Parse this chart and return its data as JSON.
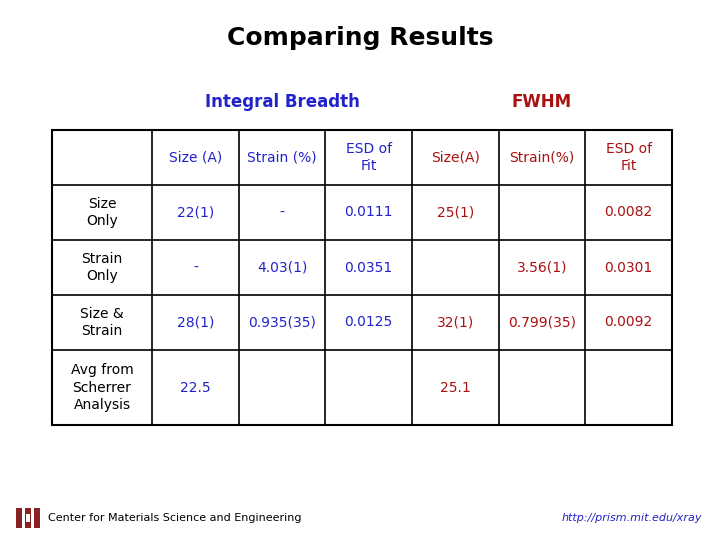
{
  "title": "Comparing Results",
  "title_fontsize": 18,
  "title_fontweight": "bold",
  "title_color": "#000000",
  "bg_color": "#ffffff",
  "integral_breadth_label": "Integral Breadth",
  "fwhm_label": "FWHM",
  "header_color_blue": "#2222CC",
  "header_color_red": "#AA1111",
  "col_headers": [
    "Size (A)",
    "Strain (%)",
    "ESD of\nFit",
    "Size(A)",
    "Strain(%)",
    "ESD of\nFit"
  ],
  "row_labels": [
    "Size\nOnly",
    "Strain\nOnly",
    "Size &\nStrain",
    "Avg from\nScherrer\nAnalysis"
  ],
  "table_data": [
    [
      "22(1)",
      "-",
      "0.0111",
      "25(1)",
      "",
      "0.0082"
    ],
    [
      "-",
      "4.03(1)",
      "0.0351",
      "",
      "3.56(1)",
      "0.0301"
    ],
    [
      "28(1)",
      "0.935(35)",
      "0.0125",
      "32(1)",
      "0.799(35)",
      "0.0092"
    ],
    [
      "22.5",
      "",
      "",
      "25.1",
      "",
      ""
    ]
  ],
  "cell_text_colors": [
    [
      "blue",
      "blue",
      "blue",
      "red",
      "red",
      "red"
    ],
    [
      "blue",
      "blue",
      "blue",
      "red",
      "red",
      "red"
    ],
    [
      "blue",
      "blue",
      "blue",
      "red",
      "red",
      "red"
    ],
    [
      "blue",
      "blue",
      "blue",
      "red",
      "red",
      "red"
    ]
  ],
  "blue_text": "#2222CC",
  "red_text": "#AA1111",
  "black_text": "#000000",
  "footer_left": "Center for Materials Science and Engineering",
  "footer_right": "http://prism.mit.edu/xray",
  "footer_fontsize": 8,
  "table_fontsize": 10,
  "label_fontsize": 12
}
